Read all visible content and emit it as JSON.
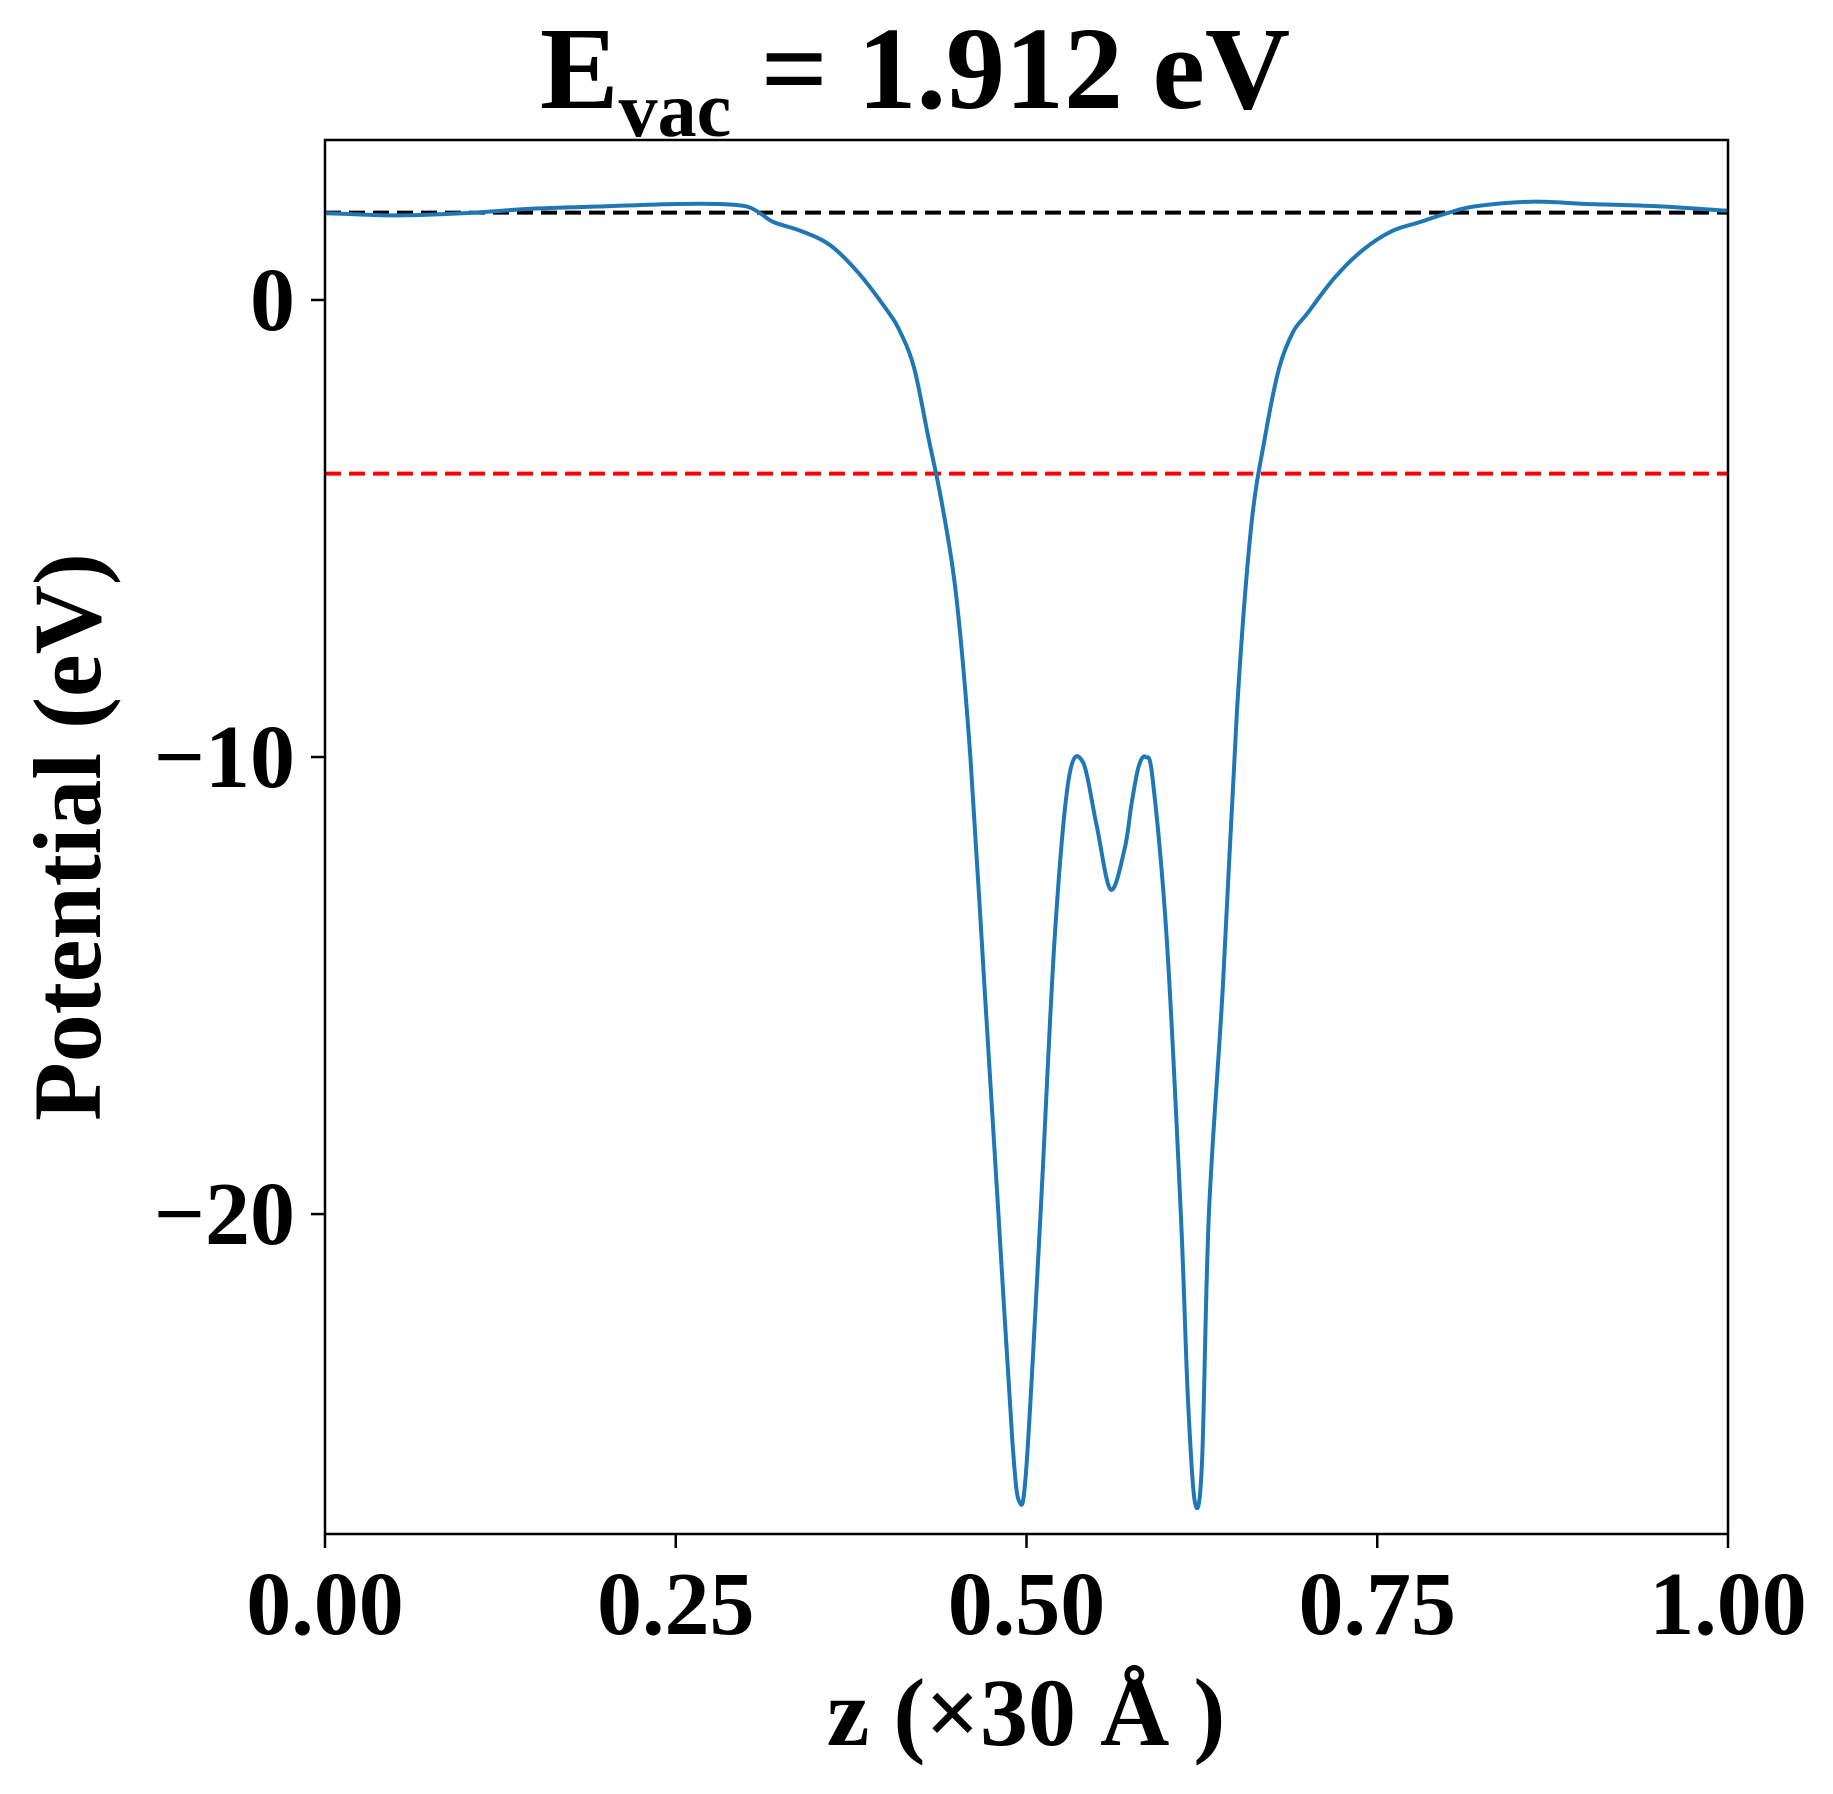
{
  "chart_data": {
    "type": "line",
    "title": {
      "main": "E",
      "subscript": "vac",
      "rest": " = 1.912 eV"
    },
    "xlabel": "z (×30 Å )",
    "ylabel": "Potential (eV)",
    "xlim": [
      0.0,
      1.0
    ],
    "ylim": [
      -27.0,
      3.5
    ],
    "xticks": [
      0.0,
      0.25,
      0.5,
      0.75,
      1.0
    ],
    "xtick_labels": [
      "0.00",
      "0.25",
      "0.50",
      "0.75",
      "1.00"
    ],
    "yticks": [
      0,
      -10,
      -20
    ],
    "ytick_labels": [
      "0",
      "−10",
      "−20"
    ],
    "grid": false,
    "legend": "none",
    "reference_lines": [
      {
        "y": 1.912,
        "color": "#000000",
        "style": "dashed"
      },
      {
        "y": -3.8,
        "color": "#ff0000",
        "style": "dashed"
      }
    ],
    "series": [
      {
        "color": "#1f77b4",
        "points": [
          [
            0.0,
            1.9
          ],
          [
            0.05,
            1.85
          ],
          [
            0.1,
            1.9
          ],
          [
            0.15,
            2.0
          ],
          [
            0.2,
            2.05
          ],
          [
            0.25,
            2.1
          ],
          [
            0.28,
            2.1
          ],
          [
            0.3,
            2.05
          ],
          [
            0.31,
            1.9
          ],
          [
            0.32,
            1.7
          ],
          [
            0.34,
            1.5
          ],
          [
            0.36,
            1.2
          ],
          [
            0.38,
            0.6
          ],
          [
            0.4,
            -0.2
          ],
          [
            0.41,
            -0.7
          ],
          [
            0.42,
            -1.5
          ],
          [
            0.43,
            -3.0
          ],
          [
            0.44,
            -4.5
          ],
          [
            0.45,
            -6.5
          ],
          [
            0.46,
            -10.0
          ],
          [
            0.47,
            -15.0
          ],
          [
            0.48,
            -20.0
          ],
          [
            0.49,
            -25.0
          ],
          [
            0.495,
            -26.3
          ],
          [
            0.5,
            -25.5
          ],
          [
            0.51,
            -20.0
          ],
          [
            0.52,
            -14.0
          ],
          [
            0.53,
            -10.5
          ],
          [
            0.54,
            -10.1
          ],
          [
            0.55,
            -11.5
          ],
          [
            0.56,
            -12.9
          ],
          [
            0.57,
            -12.0
          ],
          [
            0.575,
            -11.0
          ],
          [
            0.58,
            -10.2
          ],
          [
            0.585,
            -10.0
          ],
          [
            0.59,
            -10.5
          ],
          [
            0.6,
            -14.0
          ],
          [
            0.61,
            -20.0
          ],
          [
            0.615,
            -24.0
          ],
          [
            0.62,
            -26.3
          ],
          [
            0.625,
            -25.5
          ],
          [
            0.63,
            -20.0
          ],
          [
            0.64,
            -15.0
          ],
          [
            0.65,
            -9.0
          ],
          [
            0.66,
            -5.0
          ],
          [
            0.67,
            -3.0
          ],
          [
            0.68,
            -1.5
          ],
          [
            0.69,
            -0.7
          ],
          [
            0.7,
            -0.3
          ],
          [
            0.72,
            0.5
          ],
          [
            0.74,
            1.1
          ],
          [
            0.76,
            1.5
          ],
          [
            0.78,
            1.7
          ],
          [
            0.8,
            1.9
          ],
          [
            0.82,
            2.05
          ],
          [
            0.86,
            2.15
          ],
          [
            0.9,
            2.1
          ],
          [
            0.95,
            2.05
          ],
          [
            1.0,
            1.95
          ]
        ]
      }
    ]
  }
}
